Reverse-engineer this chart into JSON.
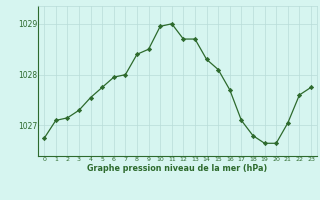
{
  "x": [
    0,
    1,
    2,
    3,
    4,
    5,
    6,
    7,
    8,
    9,
    10,
    11,
    12,
    13,
    14,
    15,
    16,
    17,
    18,
    19,
    20,
    21,
    22,
    23
  ],
  "y": [
    1026.75,
    1027.1,
    1027.15,
    1027.3,
    1027.55,
    1027.75,
    1027.95,
    1028.0,
    1028.4,
    1028.5,
    1028.95,
    1029.0,
    1028.7,
    1028.7,
    1028.3,
    1028.1,
    1027.7,
    1027.1,
    1026.8,
    1026.65,
    1026.65,
    1027.05,
    1027.6,
    1027.75
  ],
  "line_color": "#2d6a2d",
  "marker_color": "#2d6a2d",
  "bg_color": "#d6f5f0",
  "grid_color": "#b8dcd8",
  "xlabel": "Graphe pression niveau de la mer (hPa)",
  "xlabel_color": "#2d6a2d",
  "tick_color": "#2d6a2d",
  "yticks": [
    1027,
    1028,
    1029
  ],
  "ylim": [
    1026.4,
    1029.35
  ],
  "xlim": [
    -0.5,
    23.5
  ]
}
